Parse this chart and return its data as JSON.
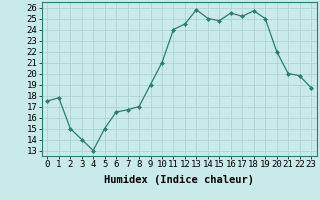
{
  "x": [
    0,
    1,
    2,
    3,
    4,
    5,
    6,
    7,
    8,
    9,
    10,
    11,
    12,
    13,
    14,
    15,
    16,
    17,
    18,
    19,
    20,
    21,
    22,
    23
  ],
  "y": [
    17.5,
    17.8,
    15.0,
    14.0,
    13.0,
    15.0,
    16.5,
    16.7,
    17.0,
    19.0,
    21.0,
    24.0,
    24.5,
    25.8,
    25.0,
    24.8,
    25.5,
    25.2,
    25.7,
    25.0,
    22.0,
    20.0,
    19.8,
    18.7
  ],
  "line_color": "#2e7d6e",
  "marker": "D",
  "marker_size": 2.0,
  "bg_color": "#c8eae8",
  "grid_color": "#aacfcc",
  "xlabel": "Humidex (Indice chaleur)",
  "ylabel_ticks": [
    13,
    14,
    15,
    16,
    17,
    18,
    19,
    20,
    21,
    22,
    23,
    24,
    25,
    26
  ],
  "xlim": [
    -0.5,
    23.5
  ],
  "ylim": [
    12.5,
    26.5
  ],
  "xtick_labels": [
    "0",
    "1",
    "2",
    "3",
    "4",
    "5",
    "6",
    "7",
    "8",
    "9",
    "10",
    "11",
    "12",
    "13",
    "14",
    "15",
    "16",
    "17",
    "18",
    "19",
    "20",
    "21",
    "22",
    "23"
  ],
  "xlabel_fontsize": 7.5,
  "tick_fontsize": 6.5
}
